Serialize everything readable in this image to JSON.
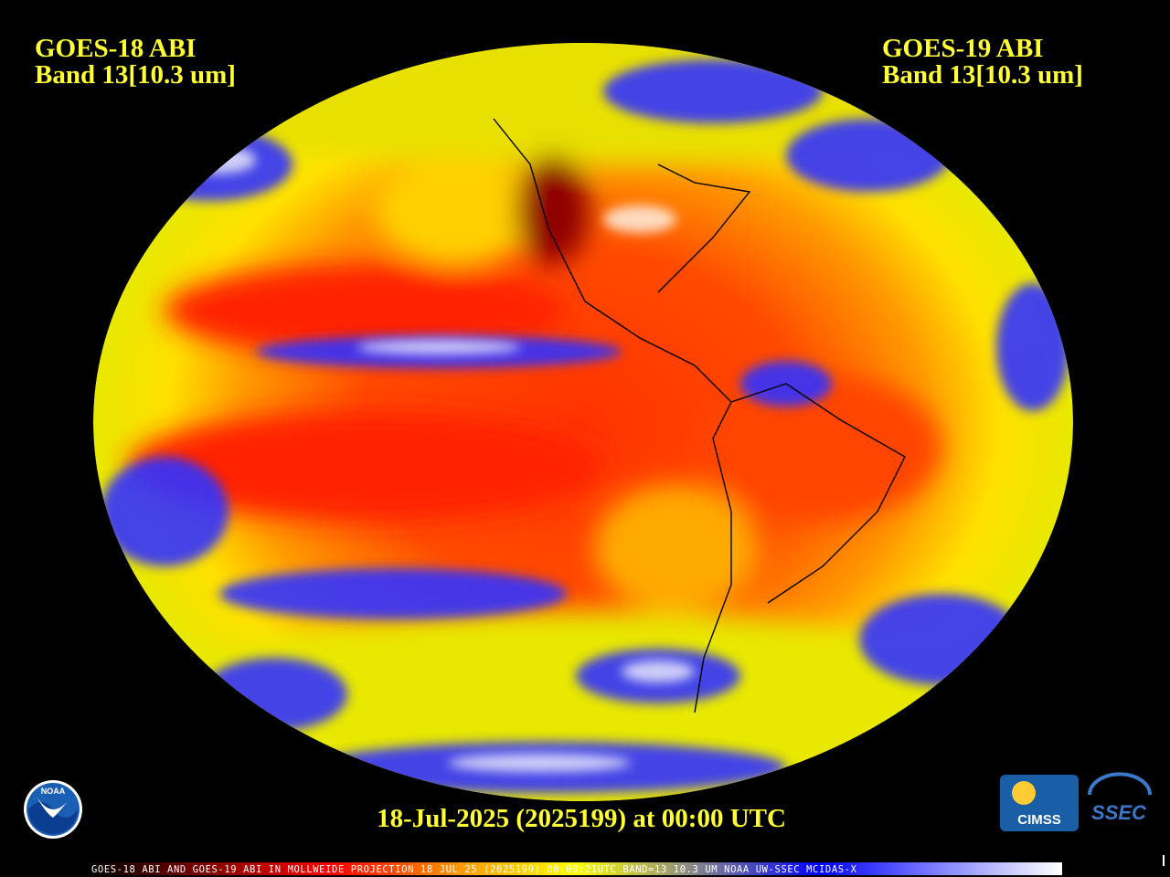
{
  "header": {
    "left": {
      "satellite": "GOES-18 ABI",
      "band": "Band 13[10.3 um]"
    },
    "right": {
      "satellite": "GOES-19 ABI",
      "band": "Band 13[10.3 um]"
    }
  },
  "timestamp": "18-Jul-2025 (2025199) at 00:00 UTC",
  "footer": "GOES-18 ABI AND GOES-19 ABI IN MOLLWEIDE PROJECTION 18 JUL 25 (2025199) 00:00:21UTC BAND=13 10.3 UM NOAA UW-SSEC MCIDAS-X",
  "logos": {
    "noaa": "NOAA",
    "cimss": "CIMSS",
    "ssec": "SSEC"
  }
}
